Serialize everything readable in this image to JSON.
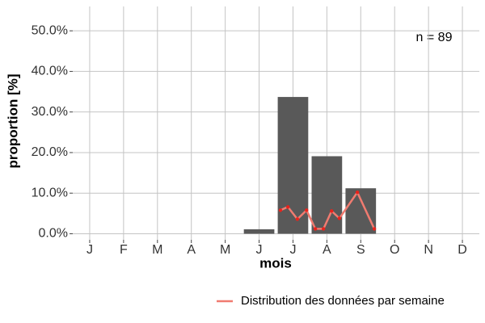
{
  "chart_data": {
    "type": "bar",
    "annotation": "n = 89",
    "x_label": "mois",
    "y_label": "proportion [%]",
    "categories": [
      "J",
      "F",
      "M",
      "A",
      "M",
      "J",
      "J",
      "A",
      "S",
      "O",
      "N",
      "D"
    ],
    "values": [
      0,
      0,
      0,
      0,
      0,
      1.1,
      33.7,
      19.1,
      11.2,
      0,
      0,
      0
    ],
    "color": "#595959",
    "xlim": [
      0.5,
      12.5
    ],
    "ylim": [
      -1.5,
      56
    ],
    "yticks": [
      {
        "value": 0,
        "label": "0.0%"
      },
      {
        "value": 10,
        "label": "10.0%"
      },
      {
        "value": 20,
        "label": "20.0%"
      },
      {
        "value": 30,
        "label": "30.0%"
      },
      {
        "value": 40,
        "label": "40.0%"
      },
      {
        "value": 50,
        "label": "50.0%"
      }
    ],
    "grid": true,
    "legend": "bottom",
    "series": [
      {
        "name": "Distribution des données par semaine",
        "color": "#f07b70",
        "point_color": "#e8231c",
        "x": [
          6.63,
          6.85,
          7.13,
          7.4,
          7.66,
          7.9,
          8.14,
          8.37,
          8.9,
          9.4
        ],
        "values": [
          5.8,
          6.6,
          3.6,
          5.8,
          1.2,
          1.2,
          5.6,
          3.8,
          10.2,
          1.2
        ]
      }
    ]
  }
}
